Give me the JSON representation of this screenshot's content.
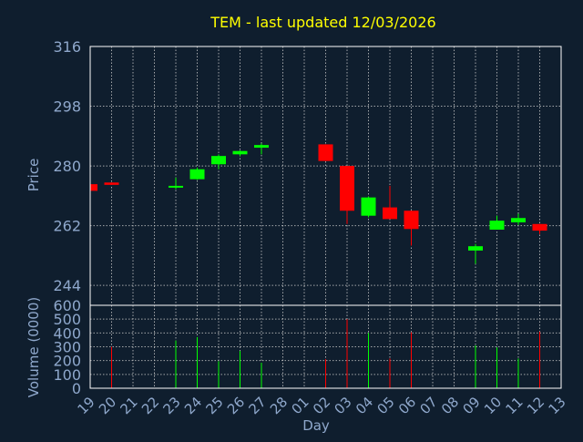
{
  "chart_data": {
    "type": "candlestick",
    "title": "TEM - last updated 12/03/2026",
    "xlabel": "Day",
    "x_tick_labels": [
      "19",
      "20",
      "21",
      "22",
      "23",
      "24",
      "25",
      "26",
      "27",
      "28",
      "01",
      "02",
      "03",
      "04",
      "05",
      "06",
      "07",
      "08",
      "09",
      "10",
      "11",
      "12",
      "13"
    ],
    "price_panel": {
      "ylabel": "Price",
      "ylim": [
        238,
        316
      ],
      "y_ticks": [
        244,
        262,
        280,
        298,
        316
      ],
      "candles": [
        {
          "day": "19",
          "open": 274.5,
          "high": 274.5,
          "low": 272.5,
          "close": 272.5
        },
        {
          "day": "20",
          "open": 275.0,
          "high": 275.0,
          "low": 274.3,
          "close": 274.3
        },
        {
          "day": "23",
          "open": 273.5,
          "high": 276.5,
          "low": 273.0,
          "close": 274.0
        },
        {
          "day": "24",
          "open": 276.0,
          "high": 279.5,
          "low": 275.8,
          "close": 279.0
        },
        {
          "day": "25",
          "open": 280.5,
          "high": 283.5,
          "low": 279.0,
          "close": 283.0
        },
        {
          "day": "26",
          "open": 283.5,
          "high": 284.7,
          "low": 283.0,
          "close": 284.5
        },
        {
          "day": "27",
          "open": 285.5,
          "high": 286.8,
          "low": 283.5,
          "close": 286.3
        },
        {
          "day": "02",
          "open": 286.5,
          "high": 286.5,
          "low": 281.5,
          "close": 281.5
        },
        {
          "day": "03",
          "open": 280.0,
          "high": 280.0,
          "low": 262.5,
          "close": 266.5
        },
        {
          "day": "04",
          "open": 265.0,
          "high": 270.8,
          "low": 264.5,
          "close": 270.5
        },
        {
          "day": "05",
          "open": 267.5,
          "high": 274.0,
          "low": 264.0,
          "close": 264.0
        },
        {
          "day": "06",
          "open": 266.5,
          "high": 266.5,
          "low": 256.0,
          "close": 261.0
        },
        {
          "day": "09",
          "open": 254.5,
          "high": 256.5,
          "low": 250.5,
          "close": 255.8
        },
        {
          "day": "10",
          "open": 260.8,
          "high": 265.0,
          "low": 260.8,
          "close": 263.5
        },
        {
          "day": "11",
          "open": 263.0,
          "high": 265.6,
          "low": 262.2,
          "close": 264.3
        },
        {
          "day": "12",
          "open": 262.5,
          "high": 262.5,
          "low": 259.5,
          "close": 260.5
        }
      ]
    },
    "volume_panel": {
      "ylabel": "Volume (0000)",
      "ylim": [
        0,
        600
      ],
      "y_ticks": [
        0,
        100,
        200,
        300,
        400,
        500,
        600
      ],
      "bars": [
        {
          "day": "20",
          "value": 300,
          "direction": "down"
        },
        {
          "day": "23",
          "value": 345,
          "direction": "up"
        },
        {
          "day": "24",
          "value": 370,
          "direction": "up"
        },
        {
          "day": "25",
          "value": 195,
          "direction": "up"
        },
        {
          "day": "26",
          "value": 270,
          "direction": "up"
        },
        {
          "day": "27",
          "value": 185,
          "direction": "up"
        },
        {
          "day": "02",
          "value": 210,
          "direction": "down"
        },
        {
          "day": "03",
          "value": 500,
          "direction": "down"
        },
        {
          "day": "04",
          "value": 400,
          "direction": "up"
        },
        {
          "day": "05",
          "value": 215,
          "direction": "down"
        },
        {
          "day": "06",
          "value": 405,
          "direction": "down"
        },
        {
          "day": "09",
          "value": 310,
          "direction": "up"
        },
        {
          "day": "10",
          "value": 295,
          "direction": "up"
        },
        {
          "day": "11",
          "value": 215,
          "direction": "up"
        },
        {
          "day": "12",
          "value": 410,
          "direction": "down"
        }
      ]
    },
    "grid": true,
    "colors": {
      "background": "#0f1e2e",
      "up": "#00ff00",
      "down": "#ff0000",
      "title": "#ffff00",
      "axis_text": "#8fa8cc",
      "grid": "#c8c8c8",
      "frame": "#ffffff"
    }
  }
}
